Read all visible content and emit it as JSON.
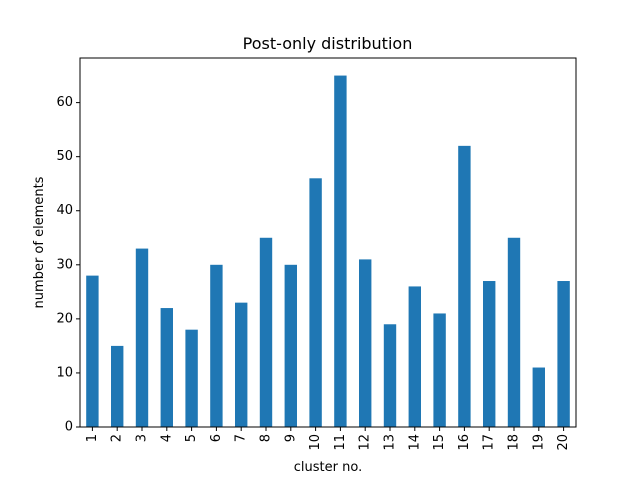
{
  "chart_data": {
    "type": "bar",
    "title": "Post-only distribution",
    "xlabel": "cluster no.",
    "ylabel": "number of elements",
    "categories": [
      "1",
      "2",
      "3",
      "4",
      "5",
      "6",
      "7",
      "8",
      "9",
      "10",
      "11",
      "12",
      "13",
      "14",
      "15",
      "16",
      "17",
      "18",
      "19",
      "20"
    ],
    "values": [
      28,
      15,
      33,
      22,
      18,
      30,
      23,
      35,
      30,
      46,
      65,
      31,
      19,
      26,
      21,
      52,
      27,
      35,
      11,
      27
    ],
    "ylim": [
      0,
      68.25
    ],
    "yticks": [
      0,
      10,
      20,
      30,
      40,
      50,
      60
    ],
    "bar_color": "#1f77b4",
    "grid": false,
    "legend": "none"
  }
}
